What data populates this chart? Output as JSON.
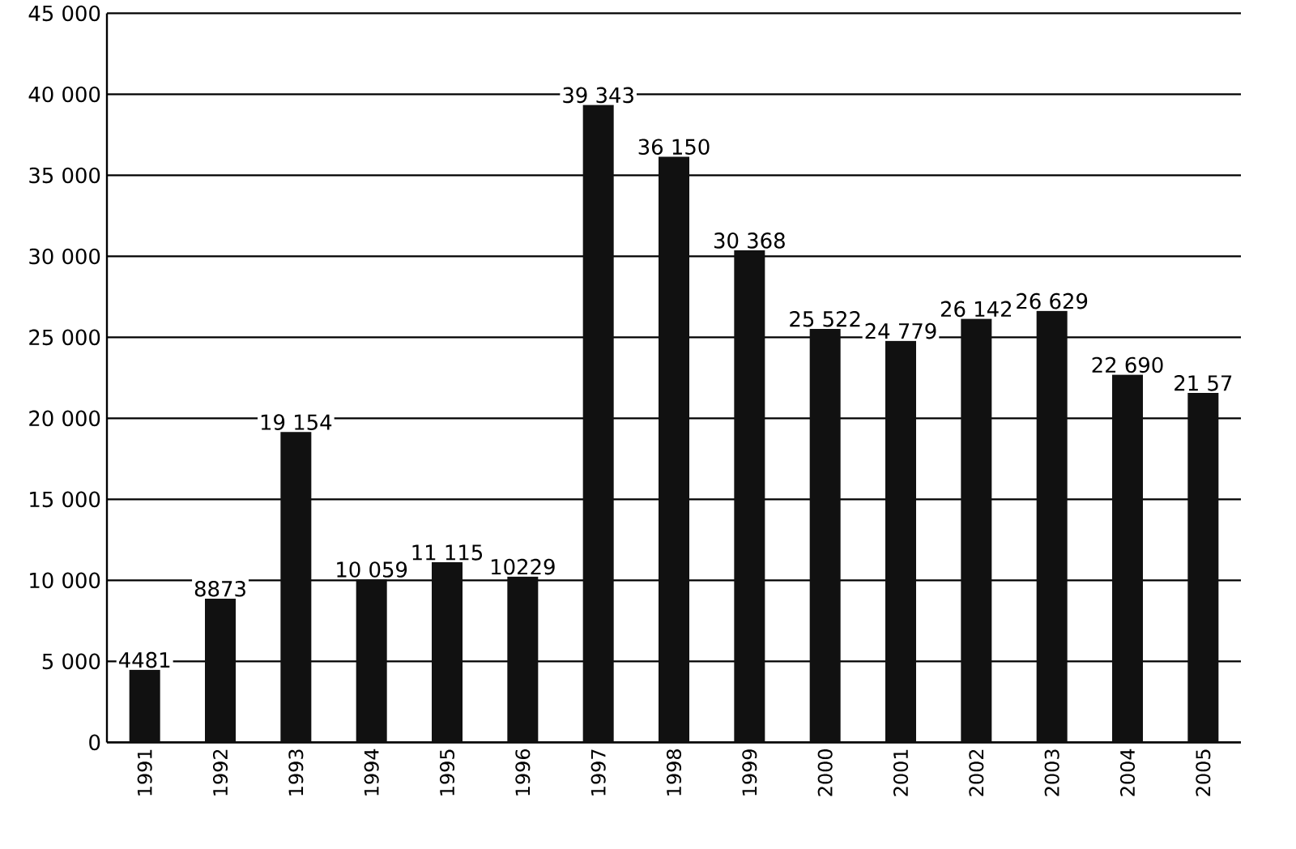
{
  "chart_data": {
    "type": "bar",
    "categories": [
      "1991",
      "1992",
      "1993",
      "1994",
      "1995",
      "1996",
      "1997",
      "1998",
      "1999",
      "2000",
      "2001",
      "2002",
      "2003",
      "2004",
      "2005"
    ],
    "values": [
      4481,
      8873,
      19154,
      10059,
      11115,
      10229,
      39343,
      36150,
      30368,
      25522,
      24779,
      26142,
      26629,
      22690,
      21570
    ],
    "value_labels": [
      "4481",
      "8873",
      "19 154",
      "10 059",
      "11 115",
      "10229",
      "39 343",
      "36 150",
      "30 368",
      "25 522",
      "24 779",
      "26 142",
      "26 629",
      "22 690",
      null
    ],
    "annotations": [
      {
        "text": "21 57",
        "x": "2005",
        "y": 21570
      }
    ],
    "color": "#111111",
    "ylim": [
      0,
      45000
    ],
    "yticks": [
      {
        "value": 0,
        "label": "0"
      },
      {
        "value": 5000,
        "label": "5 000"
      },
      {
        "value": 10000,
        "label": "10 000"
      },
      {
        "value": 15000,
        "label": "15 000"
      },
      {
        "value": 20000,
        "label": "20 000"
      },
      {
        "value": 25000,
        "label": "25 000"
      },
      {
        "value": 30000,
        "label": "30 000"
      },
      {
        "value": 35000,
        "label": "35 000"
      },
      {
        "value": 40000,
        "label": "40 000"
      },
      {
        "value": 45000,
        "label": "45 000"
      }
    ],
    "grid": "y"
  }
}
